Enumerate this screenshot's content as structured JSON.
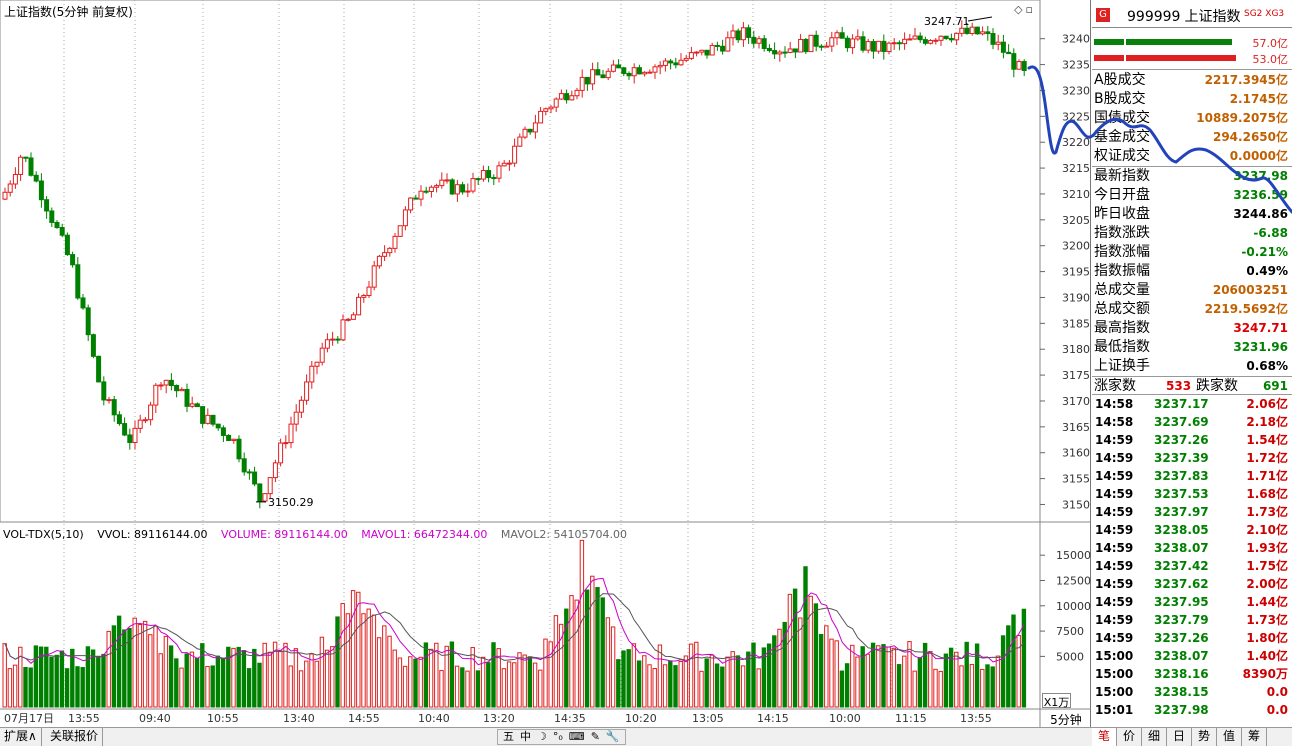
{
  "header": {
    "title": "上证指数(5分钟 前复权)"
  },
  "chart": {
    "price_ticks": [
      "3240",
      "3235",
      "3230",
      "3225",
      "3220",
      "3215",
      "3210",
      "3205",
      "3200",
      "3195",
      "3190",
      "3185",
      "3180",
      "3175",
      "3170",
      "3165",
      "3160",
      "3155",
      "3150"
    ],
    "vol_ticks": [
      "15000",
      "12500",
      "10000",
      "7500",
      "5000"
    ],
    "x_labels": [
      "07月17日",
      "13:55",
      "09:40",
      "10:55",
      "13:40",
      "14:55",
      "10:40",
      "13:20",
      "14:35",
      "10:20",
      "13:05",
      "14:15",
      "10:00",
      "11:15",
      "13:55"
    ],
    "high_marker": "3247.71",
    "low_marker": "3150.29",
    "vol_legend": {
      "name": "VOL-TDX(5,10)",
      "vvol": "VVOL: 89116144.00",
      "volume": "VOLUME: 89116144.00",
      "mavol1": "MAVOL1: 66472344.00",
      "mavol2": "MAVOL2: 54105704.00"
    },
    "x_unit": "X1万",
    "period": "5分钟",
    "colors": {
      "up": "#e02020",
      "down": "#008000",
      "ma1": "#cc00cc",
      "ma2": "#555555",
      "annotation": "#2244bb"
    }
  },
  "bottom": {
    "expand": "扩展∧",
    "related": "关联报价",
    "ime": [
      "五",
      "中",
      "☽",
      "°₀",
      "⌨",
      "✎",
      "🔧"
    ],
    "tabs": [
      "笔",
      "价",
      "细",
      "日",
      "势",
      "值",
      "筹"
    ]
  },
  "panel": {
    "code": "999999",
    "name": "上证指数",
    "sg2": "SG2",
    "xg3": "XG3",
    "bar1": "57.0亿",
    "bar2": "53.0亿",
    "turnover": [
      {
        "k": "A股成交",
        "v": "2217.3945亿"
      },
      {
        "k": "B股成交",
        "v": "2.1745亿"
      },
      {
        "k": "国债成交",
        "v": "10889.2075亿"
      },
      {
        "k": "基金成交",
        "v": "294.2650亿"
      },
      {
        "k": "权证成交",
        "v": "0.0000亿"
      }
    ],
    "stats": [
      {
        "k": "最新指数",
        "v": "3237.98",
        "c": "green"
      },
      {
        "k": "今日开盘",
        "v": "3236.59",
        "c": "green"
      },
      {
        "k": "昨日收盘",
        "v": "3244.86",
        "c": "black"
      },
      {
        "k": "指数涨跌",
        "v": "-6.88",
        "c": "green"
      },
      {
        "k": "指数涨幅",
        "v": "-0.21%",
        "c": "green"
      },
      {
        "k": "指数振幅",
        "v": "0.49%",
        "c": "black"
      },
      {
        "k": "总成交量",
        "v": "206003251",
        "c": "orange"
      },
      {
        "k": "总成交额",
        "v": "2219.5692亿",
        "c": "orange"
      },
      {
        "k": "最高指数",
        "v": "3247.71",
        "c": "red"
      },
      {
        "k": "最低指数",
        "v": "3231.96",
        "c": "green"
      },
      {
        "k": "上证换手",
        "v": "0.68%",
        "c": "black"
      }
    ],
    "up_label": "涨家数",
    "up_count": "533",
    "down_label": "跌家数",
    "down_count": "691",
    "ticks": [
      {
        "t": "14:58",
        "p": "3237.17",
        "a": "2.06亿"
      },
      {
        "t": "14:58",
        "p": "3237.69",
        "a": "2.18亿"
      },
      {
        "t": "14:59",
        "p": "3237.26",
        "a": "1.54亿"
      },
      {
        "t": "14:59",
        "p": "3237.39",
        "a": "1.72亿"
      },
      {
        "t": "14:59",
        "p": "3237.83",
        "a": "1.71亿"
      },
      {
        "t": "14:59",
        "p": "3237.53",
        "a": "1.68亿"
      },
      {
        "t": "14:59",
        "p": "3237.97",
        "a": "1.73亿"
      },
      {
        "t": "14:59",
        "p": "3238.05",
        "a": "2.10亿"
      },
      {
        "t": "14:59",
        "p": "3238.07",
        "a": "1.93亿"
      },
      {
        "t": "14:59",
        "p": "3237.42",
        "a": "1.75亿"
      },
      {
        "t": "14:59",
        "p": "3237.62",
        "a": "2.00亿"
      },
      {
        "t": "14:59",
        "p": "3237.95",
        "a": "1.44亿"
      },
      {
        "t": "14:59",
        "p": "3237.79",
        "a": "1.73亿"
      },
      {
        "t": "14:59",
        "p": "3237.26",
        "a": "1.80亿"
      },
      {
        "t": "15:00",
        "p": "3238.07",
        "a": "1.40亿"
      },
      {
        "t": "15:00",
        "p": "3238.16",
        "a": "8390万"
      },
      {
        "t": "15:00",
        "p": "3238.15",
        "a": "0.0"
      },
      {
        "t": "15:01",
        "p": "3237.98",
        "a": "0.0"
      }
    ]
  }
}
